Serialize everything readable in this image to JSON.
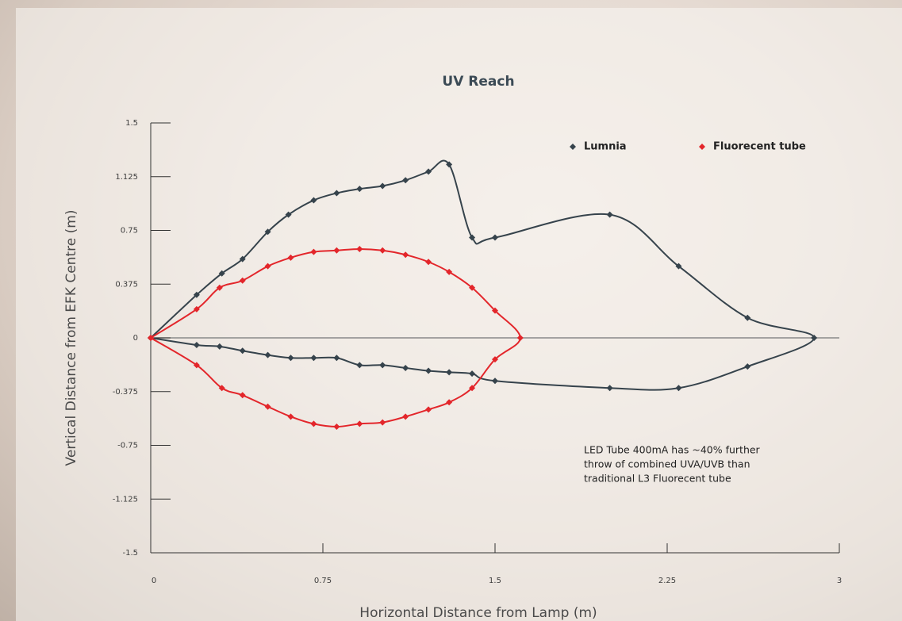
{
  "chart_data": {
    "type": "line",
    "title": "UV Reach",
    "x_label": "Horizontal Distance from Lamp (m)",
    "y_label": "Vertical Distance from EFK Centre (m)",
    "annotation": [
      "LED Tube 400mA has ~40% further",
      "throw of combined UVA/UVB than",
      "traditional L3 Fluorecent tube"
    ],
    "xlim": [
      0,
      3
    ],
    "xticks": [
      0,
      0.75,
      1.5,
      2.25,
      3
    ],
    "ylim": [
      -1.5,
      1.5
    ],
    "yticks": [
      1.5,
      1.125,
      0.75,
      0.375,
      0,
      -0.375,
      -0.75,
      -1.125,
      -1.5
    ],
    "legend": "top-right",
    "series": [
      {
        "name": "Lumnia",
        "color": "#36434c",
        "x": [
          0,
          0.2,
          0.31,
          0.4,
          0.51,
          0.6,
          0.71,
          0.81,
          0.91,
          1.01,
          1.11,
          1.21,
          1.3,
          1.4,
          1.5,
          2.0,
          2.3,
          2.6,
          2.89,
          2.6,
          2.3,
          2.0,
          1.5,
          1.4,
          1.3,
          1.21,
          1.11,
          1.01,
          0.91,
          0.81,
          0.71,
          0.61,
          0.51,
          0.4,
          0.3,
          0.2,
          0
        ],
        "values": [
          0,
          0.3,
          0.45,
          0.55,
          0.74,
          0.86,
          0.96,
          1.01,
          1.04,
          1.06,
          1.1,
          1.16,
          1.21,
          0.7,
          0.7,
          0.86,
          0.5,
          0.14,
          0,
          -0.2,
          -0.35,
          -0.35,
          -0.3,
          -0.25,
          -0.24,
          -0.23,
          -0.21,
          -0.19,
          -0.19,
          -0.14,
          -0.14,
          -0.14,
          -0.12,
          -0.09,
          -0.06,
          -0.05,
          0
        ]
      },
      {
        "name": "Fluorecent tube",
        "color": "#e3262b",
        "x": [
          0,
          0.2,
          0.3,
          0.4,
          0.51,
          0.61,
          0.71,
          0.81,
          0.91,
          1.01,
          1.11,
          1.21,
          1.3,
          1.4,
          1.5,
          1.61,
          1.5,
          1.4,
          1.3,
          1.21,
          1.11,
          1.01,
          0.91,
          0.81,
          0.71,
          0.61,
          0.51,
          0.4,
          0.31,
          0.2,
          0
        ],
        "values": [
          0,
          0.2,
          0.35,
          0.4,
          0.5,
          0.56,
          0.6,
          0.61,
          0.62,
          0.61,
          0.58,
          0.53,
          0.46,
          0.35,
          0.19,
          0,
          -0.15,
          -0.35,
          -0.45,
          -0.5,
          -0.55,
          -0.59,
          -0.6,
          -0.62,
          -0.6,
          -0.55,
          -0.48,
          -0.4,
          -0.35,
          -0.19,
          0
        ]
      }
    ]
  }
}
